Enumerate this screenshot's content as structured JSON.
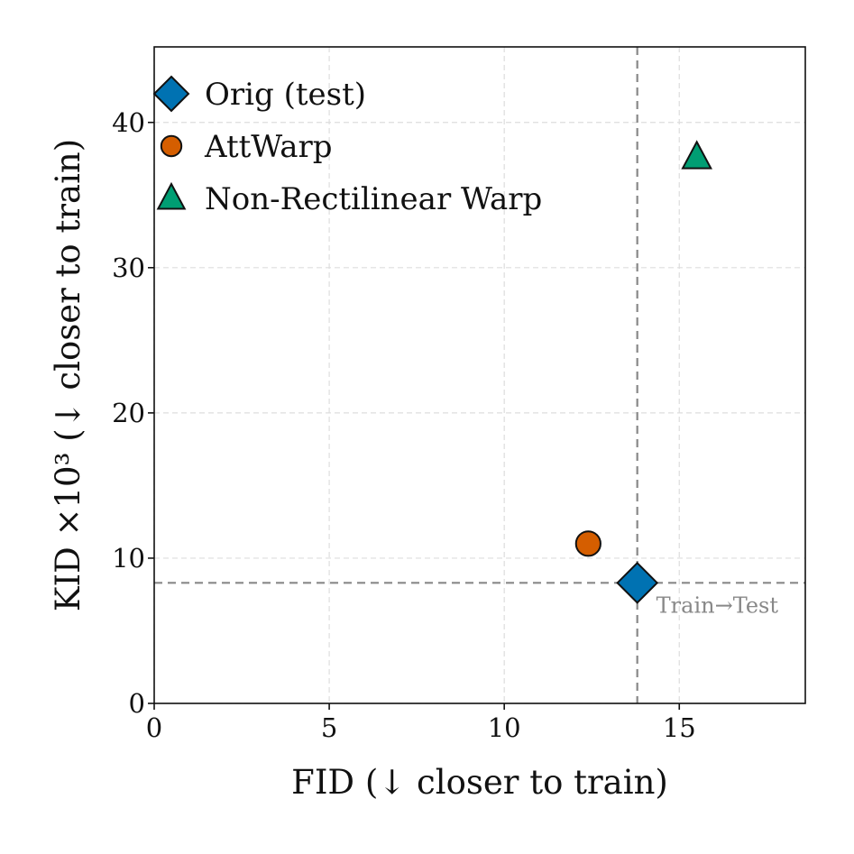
{
  "chart_data": {
    "type": "scatter",
    "title": "",
    "xlabel": "FID  (↓ closer to train)",
    "ylabel": "KID ×10³  (↓ closer to train)",
    "xlim": [
      0,
      18.6
    ],
    "ylim": [
      0,
      45.2
    ],
    "xticks": [
      0,
      5,
      10,
      15
    ],
    "yticks": [
      0,
      10,
      20,
      30,
      40
    ],
    "grid": true,
    "legend_position": "top-left",
    "series": [
      {
        "name": "Orig (test)",
        "marker": "diamond",
        "color": "#0072b2",
        "x": 13.8,
        "y": 8.3
      },
      {
        "name": "AttWarp",
        "marker": "circle",
        "color": "#d55e00",
        "x": 12.4,
        "y": 11.0
      },
      {
        "name": "Non-Rectilinear Warp",
        "marker": "triangle",
        "color": "#009e73",
        "x": 15.5,
        "y": 37.6
      }
    ],
    "reference": {
      "label": "Train→Test",
      "x": 13.8,
      "y": 8.3
    }
  }
}
